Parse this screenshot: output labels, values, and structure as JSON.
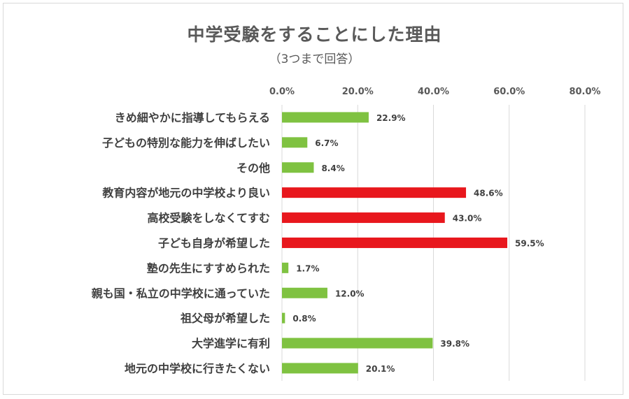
{
  "chart_data": {
    "type": "bar",
    "orientation": "horizontal",
    "title": "中学受験をすることにした理由",
    "subtitle": "（3つまで回答）",
    "xlim": [
      0,
      80
    ],
    "x_ticks": [
      "0.0%",
      "20.0%",
      "40.0%",
      "60.0%",
      "80.0%"
    ],
    "x_tick_values": [
      0,
      20,
      40,
      60,
      80
    ],
    "grid": true,
    "legend": "none",
    "colors": {
      "default": "#7fc241",
      "highlight": "#e8171d"
    },
    "categories": [
      "きめ細やかに指導してもらえる",
      "子どもの特別な能力を伸ばしたい",
      "その他",
      "教育内容が地元の中学校より良い",
      "高校受験をしなくてすむ",
      "子ども自身が希望した",
      "塾の先生にすすめられた",
      "親も国・私立の中学校に通っていた",
      "祖父母が希望した",
      "大学進学に有利",
      "地元の中学校に行きたくない"
    ],
    "values": [
      22.9,
      6.7,
      8.4,
      48.6,
      43.0,
      59.5,
      1.7,
      12.0,
      0.8,
      39.8,
      20.1
    ],
    "value_labels": [
      "22.9%",
      "6.7%",
      "8.4%",
      "48.6%",
      "43.0%",
      "59.5%",
      "1.7%",
      "12.0%",
      "0.8%",
      "39.8%",
      "20.1%"
    ],
    "highlighted": [
      false,
      false,
      false,
      true,
      true,
      true,
      false,
      false,
      false,
      false,
      false
    ]
  }
}
